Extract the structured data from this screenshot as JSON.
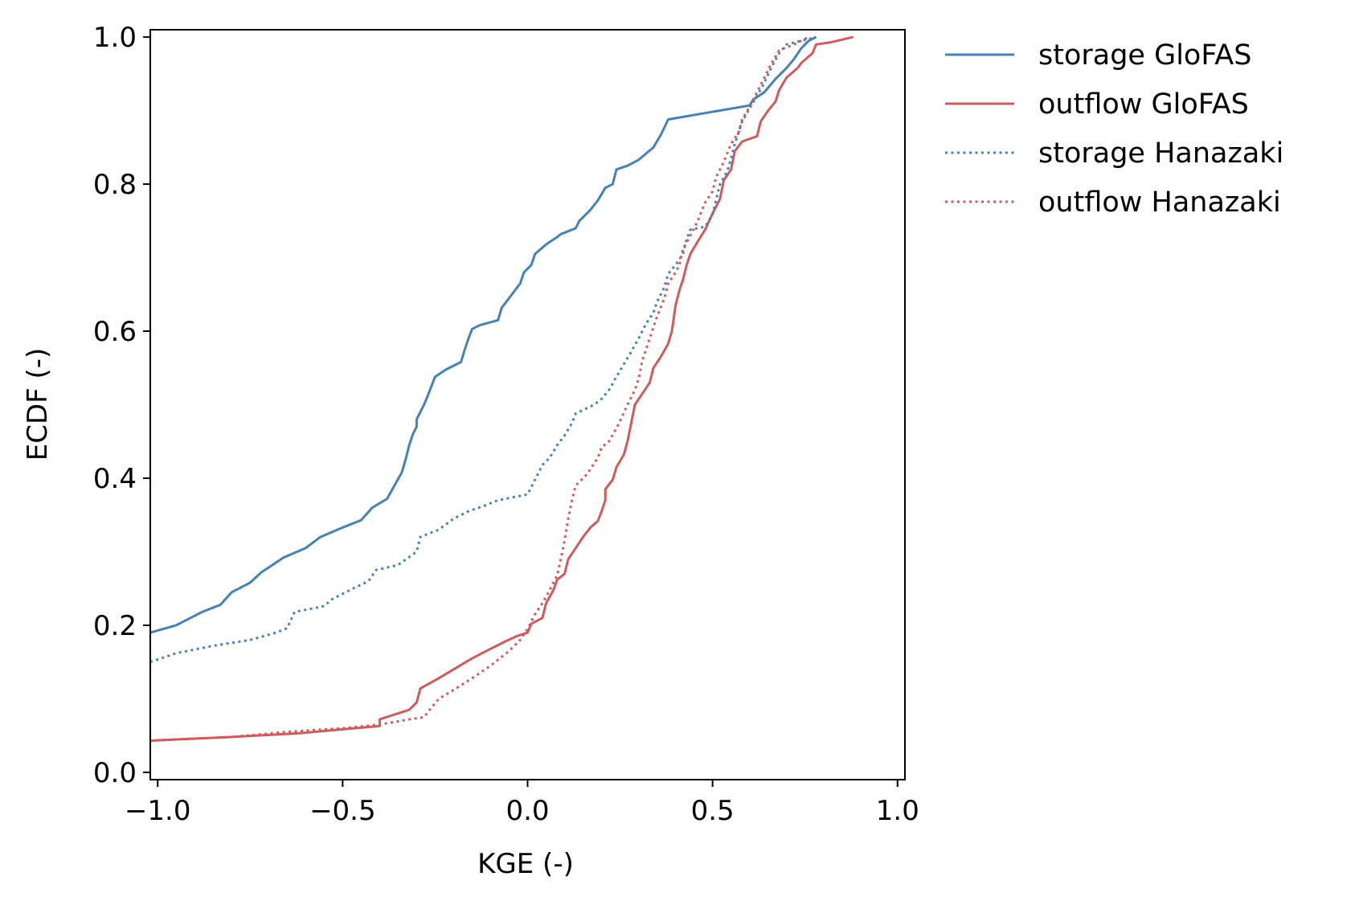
{
  "chart_data": {
    "type": "line",
    "title": "",
    "xlabel": "KGE (-)",
    "ylabel": "ECDF (-)",
    "xlim": [
      -1.02,
      1.02
    ],
    "ylim": [
      -0.01,
      1.01
    ],
    "xticks": [
      -1.0,
      -0.5,
      0.0,
      0.5,
      1.0
    ],
    "xtick_labels": [
      "−1.0",
      "−0.5",
      "0.0",
      "0.5",
      "1.0"
    ],
    "yticks": [
      0.0,
      0.2,
      0.4,
      0.6,
      0.8,
      1.0
    ],
    "ytick_labels": [
      "0.0",
      "0.2",
      "0.4",
      "0.6",
      "0.8",
      "1.0"
    ],
    "grid": false,
    "legend_position": "outside-top-right",
    "series": [
      {
        "name": "storage GloFAS",
        "color": "#4682B4",
        "style": "solid",
        "points": [
          [
            -1.02,
            0.19
          ],
          [
            -0.95,
            0.2
          ],
          [
            -0.88,
            0.218
          ],
          [
            -0.83,
            0.228
          ],
          [
            -0.8,
            0.245
          ],
          [
            -0.75,
            0.258
          ],
          [
            -0.72,
            0.272
          ],
          [
            -0.66,
            0.292
          ],
          [
            -0.6,
            0.305
          ],
          [
            -0.56,
            0.32
          ],
          [
            -0.5,
            0.333
          ],
          [
            -0.45,
            0.343
          ],
          [
            -0.42,
            0.36
          ],
          [
            -0.38,
            0.372
          ],
          [
            -0.36,
            0.39
          ],
          [
            -0.34,
            0.408
          ],
          [
            -0.33,
            0.425
          ],
          [
            -0.32,
            0.445
          ],
          [
            -0.31,
            0.46
          ],
          [
            -0.3,
            0.47
          ],
          [
            -0.3,
            0.48
          ],
          [
            -0.29,
            0.49
          ],
          [
            -0.28,
            0.5
          ],
          [
            -0.27,
            0.512
          ],
          [
            -0.25,
            0.538
          ],
          [
            -0.22,
            0.548
          ],
          [
            -0.18,
            0.558
          ],
          [
            -0.17,
            0.575
          ],
          [
            -0.16,
            0.59
          ],
          [
            -0.15,
            0.603
          ],
          [
            -0.13,
            0.608
          ],
          [
            -0.08,
            0.615
          ],
          [
            -0.07,
            0.632
          ],
          [
            -0.05,
            0.645
          ],
          [
            -0.02,
            0.665
          ],
          [
            -0.01,
            0.68
          ],
          [
            0.01,
            0.69
          ],
          [
            0.02,
            0.705
          ],
          [
            0.05,
            0.718
          ],
          [
            0.08,
            0.728
          ],
          [
            0.09,
            0.732
          ],
          [
            0.13,
            0.74
          ],
          [
            0.14,
            0.75
          ],
          [
            0.17,
            0.765
          ],
          [
            0.19,
            0.778
          ],
          [
            0.21,
            0.795
          ],
          [
            0.23,
            0.8
          ],
          [
            0.24,
            0.82
          ],
          [
            0.27,
            0.825
          ],
          [
            0.3,
            0.833
          ],
          [
            0.34,
            0.85
          ],
          [
            0.36,
            0.867
          ],
          [
            0.38,
            0.888
          ],
          [
            0.6,
            0.907
          ],
          [
            0.61,
            0.915
          ],
          [
            0.64,
            0.925
          ],
          [
            0.67,
            0.943
          ],
          [
            0.7,
            0.958
          ],
          [
            0.72,
            0.97
          ],
          [
            0.74,
            0.985
          ],
          [
            0.76,
            0.995
          ],
          [
            0.78,
            1.0
          ]
        ]
      },
      {
        "name": "outflow GloFAS",
        "color": "#CD5C5C",
        "style": "solid",
        "points": [
          [
            -1.02,
            0.043
          ],
          [
            -0.8,
            0.048
          ],
          [
            -0.62,
            0.053
          ],
          [
            -0.4,
            0.063
          ],
          [
            -0.4,
            0.072
          ],
          [
            -0.32,
            0.085
          ],
          [
            -0.3,
            0.095
          ],
          [
            -0.29,
            0.114
          ],
          [
            -0.24,
            0.128
          ],
          [
            -0.2,
            0.14
          ],
          [
            -0.15,
            0.155
          ],
          [
            -0.1,
            0.168
          ],
          [
            -0.06,
            0.178
          ],
          [
            -0.03,
            0.185
          ],
          [
            0.0,
            0.19
          ],
          [
            0.01,
            0.202
          ],
          [
            0.04,
            0.21
          ],
          [
            0.05,
            0.23
          ],
          [
            0.07,
            0.248
          ],
          [
            0.08,
            0.262
          ],
          [
            0.1,
            0.27
          ],
          [
            0.11,
            0.29
          ],
          [
            0.13,
            0.305
          ],
          [
            0.15,
            0.32
          ],
          [
            0.17,
            0.333
          ],
          [
            0.19,
            0.342
          ],
          [
            0.2,
            0.355
          ],
          [
            0.21,
            0.37
          ],
          [
            0.21,
            0.385
          ],
          [
            0.23,
            0.398
          ],
          [
            0.24,
            0.415
          ],
          [
            0.26,
            0.432
          ],
          [
            0.27,
            0.45
          ],
          [
            0.28,
            0.475
          ],
          [
            0.29,
            0.5
          ],
          [
            0.31,
            0.515
          ],
          [
            0.33,
            0.53
          ],
          [
            0.34,
            0.55
          ],
          [
            0.36,
            0.565
          ],
          [
            0.38,
            0.583
          ],
          [
            0.39,
            0.6
          ],
          [
            0.4,
            0.635
          ],
          [
            0.41,
            0.655
          ],
          [
            0.42,
            0.67
          ],
          [
            0.43,
            0.69
          ],
          [
            0.44,
            0.705
          ],
          [
            0.46,
            0.722
          ],
          [
            0.48,
            0.738
          ],
          [
            0.5,
            0.76
          ],
          [
            0.52,
            0.78
          ],
          [
            0.53,
            0.805
          ],
          [
            0.55,
            0.82
          ],
          [
            0.56,
            0.845
          ],
          [
            0.58,
            0.858
          ],
          [
            0.62,
            0.865
          ],
          [
            0.63,
            0.885
          ],
          [
            0.65,
            0.9
          ],
          [
            0.67,
            0.912
          ],
          [
            0.68,
            0.928
          ],
          [
            0.7,
            0.945
          ],
          [
            0.73,
            0.958
          ],
          [
            0.74,
            0.965
          ],
          [
            0.77,
            0.978
          ],
          [
            0.78,
            0.99
          ],
          [
            0.82,
            0.993
          ],
          [
            0.88,
            1.0
          ]
        ]
      },
      {
        "name": "storage Hanazaki",
        "color": "#4682B4",
        "style": "dotted",
        "points": [
          [
            -1.02,
            0.15
          ],
          [
            -0.95,
            0.162
          ],
          [
            -0.85,
            0.172
          ],
          [
            -0.75,
            0.18
          ],
          [
            -0.68,
            0.19
          ],
          [
            -0.65,
            0.196
          ],
          [
            -0.63,
            0.218
          ],
          [
            -0.55,
            0.226
          ],
          [
            -0.53,
            0.235
          ],
          [
            -0.48,
            0.248
          ],
          [
            -0.43,
            0.26
          ],
          [
            -0.41,
            0.275
          ],
          [
            -0.35,
            0.282
          ],
          [
            -0.3,
            0.3
          ],
          [
            -0.29,
            0.32
          ],
          [
            -0.24,
            0.33
          ],
          [
            -0.2,
            0.345
          ],
          [
            -0.16,
            0.355
          ],
          [
            -0.12,
            0.362
          ],
          [
            -0.08,
            0.37
          ],
          [
            0.0,
            0.378
          ],
          [
            0.02,
            0.398
          ],
          [
            0.04,
            0.418
          ],
          [
            0.06,
            0.428
          ],
          [
            0.08,
            0.445
          ],
          [
            0.1,
            0.458
          ],
          [
            0.12,
            0.475
          ],
          [
            0.13,
            0.488
          ],
          [
            0.18,
            0.5
          ],
          [
            0.2,
            0.508
          ],
          [
            0.22,
            0.52
          ],
          [
            0.24,
            0.538
          ],
          [
            0.26,
            0.555
          ],
          [
            0.28,
            0.572
          ],
          [
            0.3,
            0.59
          ],
          [
            0.32,
            0.61
          ],
          [
            0.34,
            0.625
          ],
          [
            0.35,
            0.64
          ],
          [
            0.37,
            0.66
          ],
          [
            0.38,
            0.678
          ],
          [
            0.4,
            0.69
          ],
          [
            0.42,
            0.705
          ],
          [
            0.43,
            0.725
          ],
          [
            0.44,
            0.738
          ],
          [
            0.48,
            0.742
          ],
          [
            0.5,
            0.758
          ],
          [
            0.51,
            0.78
          ],
          [
            0.52,
            0.8
          ],
          [
            0.54,
            0.818
          ],
          [
            0.55,
            0.835
          ],
          [
            0.56,
            0.855
          ],
          [
            0.57,
            0.87
          ],
          [
            0.58,
            0.885
          ],
          [
            0.6,
            0.903
          ],
          [
            0.62,
            0.92
          ],
          [
            0.64,
            0.938
          ],
          [
            0.66,
            0.96
          ],
          [
            0.68,
            0.978
          ],
          [
            0.7,
            0.99
          ],
          [
            0.74,
            0.995
          ],
          [
            0.78,
            1.0
          ]
        ]
      },
      {
        "name": "outflow Hanazaki",
        "color": "#CD5C5C",
        "style": "dotted",
        "points": [
          [
            -1.02,
            0.043
          ],
          [
            -0.8,
            0.048
          ],
          [
            -0.65,
            0.055
          ],
          [
            -0.5,
            0.06
          ],
          [
            -0.4,
            0.065
          ],
          [
            -0.32,
            0.072
          ],
          [
            -0.28,
            0.075
          ],
          [
            -0.26,
            0.088
          ],
          [
            -0.24,
            0.1
          ],
          [
            -0.2,
            0.112
          ],
          [
            -0.15,
            0.128
          ],
          [
            -0.1,
            0.145
          ],
          [
            -0.05,
            0.165
          ],
          [
            -0.02,
            0.18
          ],
          [
            0.0,
            0.195
          ],
          [
            0.02,
            0.215
          ],
          [
            0.04,
            0.23
          ],
          [
            0.06,
            0.248
          ],
          [
            0.08,
            0.268
          ],
          [
            0.09,
            0.29
          ],
          [
            0.1,
            0.315
          ],
          [
            0.11,
            0.345
          ],
          [
            0.12,
            0.37
          ],
          [
            0.13,
            0.39
          ],
          [
            0.16,
            0.405
          ],
          [
            0.19,
            0.428
          ],
          [
            0.2,
            0.442
          ],
          [
            0.22,
            0.45
          ],
          [
            0.24,
            0.468
          ],
          [
            0.25,
            0.478
          ],
          [
            0.27,
            0.5
          ],
          [
            0.29,
            0.52
          ],
          [
            0.3,
            0.535
          ],
          [
            0.31,
            0.56
          ],
          [
            0.33,
            0.59
          ],
          [
            0.35,
            0.62
          ],
          [
            0.37,
            0.645
          ],
          [
            0.38,
            0.665
          ],
          [
            0.4,
            0.68
          ],
          [
            0.41,
            0.69
          ],
          [
            0.42,
            0.712
          ],
          [
            0.44,
            0.73
          ],
          [
            0.46,
            0.75
          ],
          [
            0.48,
            0.775
          ],
          [
            0.5,
            0.79
          ],
          [
            0.51,
            0.81
          ],
          [
            0.53,
            0.83
          ],
          [
            0.55,
            0.855
          ],
          [
            0.57,
            0.87
          ],
          [
            0.58,
            0.888
          ],
          [
            0.6,
            0.905
          ],
          [
            0.62,
            0.925
          ],
          [
            0.64,
            0.945
          ],
          [
            0.66,
            0.965
          ],
          [
            0.68,
            0.982
          ],
          [
            0.72,
            0.99
          ],
          [
            0.76,
            1.0
          ]
        ]
      }
    ]
  }
}
